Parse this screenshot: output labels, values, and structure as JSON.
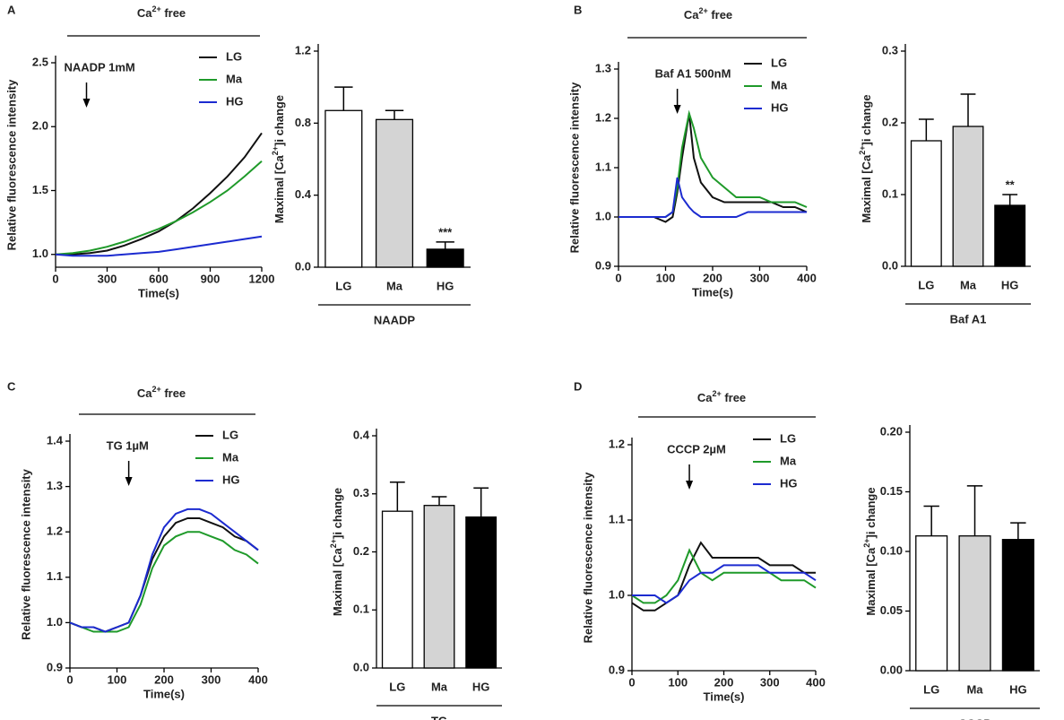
{
  "chart_data": [
    {
      "type": "line",
      "panel": "A",
      "condition": [
        "Ca",
        "2+",
        " free"
      ],
      "annotation": "NAADP 1mM",
      "annotation_x": 180,
      "xlabel": "Time(s)",
      "ylabel": "Relative fluorescence intensity",
      "xlim": [
        0,
        1200
      ],
      "xticks": [
        0,
        300,
        600,
        900,
        1200
      ],
      "ylim": [
        0.9,
        2.5
      ],
      "yticks": [
        {
          "value": 1,
          "label": "1.0"
        },
        1.5,
        {
          "value": 2,
          "label": "2.0"
        },
        2.5
      ],
      "x": [
        0,
        100,
        200,
        300,
        400,
        500,
        600,
        700,
        800,
        900,
        1000,
        1100,
        1200
      ],
      "series": [
        {
          "name": "LG",
          "color": "#111111",
          "values": [
            1.0,
            1.0,
            1.01,
            1.03,
            1.07,
            1.12,
            1.18,
            1.26,
            1.36,
            1.48,
            1.61,
            1.76,
            1.95
          ]
        },
        {
          "name": "Ma",
          "color": "#1f9a2a",
          "values": [
            1.0,
            1.01,
            1.03,
            1.06,
            1.1,
            1.15,
            1.2,
            1.26,
            1.33,
            1.41,
            1.5,
            1.61,
            1.73
          ]
        },
        {
          "name": "HG",
          "color": "#1c2bd0",
          "values": [
            1.0,
            0.99,
            0.99,
            0.99,
            1.0,
            1.01,
            1.02,
            1.04,
            1.06,
            1.08,
            1.1,
            1.12,
            1.14
          ]
        }
      ]
    },
    {
      "type": "bar",
      "ylabel": [
        "Maximal [Ca",
        "2+",
        "]i change"
      ],
      "group": "NAADP",
      "categories": [
        "LG",
        "Ma",
        "HG"
      ],
      "values": [
        0.87,
        0.82,
        0.1
      ],
      "errors": [
        0.13,
        0.05,
        0.04
      ],
      "colors": [
        "#ffffff",
        "#d4d4d4",
        "#000000"
      ],
      "significance": [
        null,
        null,
        "***"
      ],
      "ylim": [
        0,
        1.2
      ],
      "yticks": [
        {
          "value": 0,
          "label": "0.0"
        },
        0.4,
        0.8,
        1.2
      ]
    },
    {
      "type": "line",
      "panel": "B",
      "condition": [
        "Ca",
        "2+",
        " free"
      ],
      "annotation": "Baf A1 500nM",
      "annotation_x": 125,
      "xlabel": "Time(s)",
      "ylabel": "Relative fluorescence intensity",
      "xlim": [
        0,
        400
      ],
      "xticks": [
        0,
        100,
        200,
        300,
        400
      ],
      "ylim": [
        0.9,
        1.3
      ],
      "yticks": [
        0.9,
        {
          "value": 1,
          "label": "1.0"
        },
        1.1,
        1.2,
        1.3
      ],
      "x": [
        0,
        25,
        50,
        75,
        100,
        115,
        125,
        135,
        150,
        160,
        175,
        200,
        225,
        250,
        275,
        300,
        325,
        350,
        375,
        400
      ],
      "series": [
        {
          "name": "LG",
          "color": "#111111",
          "values": [
            1.0,
            1.0,
            1.0,
            1.0,
            0.99,
            1.0,
            1.05,
            1.12,
            1.21,
            1.12,
            1.07,
            1.04,
            1.03,
            1.03,
            1.03,
            1.03,
            1.03,
            1.02,
            1.02,
            1.01
          ]
        },
        {
          "name": "Ma",
          "color": "#1f9a2a",
          "values": [
            1.0,
            1.0,
            1.0,
            1.0,
            1.0,
            1.01,
            1.06,
            1.14,
            1.21,
            1.18,
            1.12,
            1.08,
            1.06,
            1.04,
            1.04,
            1.04,
            1.03,
            1.03,
            1.03,
            1.02
          ]
        },
        {
          "name": "HG",
          "color": "#1c2bd0",
          "values": [
            1.0,
            1.0,
            1.0,
            1.0,
            1.0,
            1.01,
            1.08,
            1.04,
            1.02,
            1.01,
            1.0,
            1.0,
            1.0,
            1.0,
            1.01,
            1.01,
            1.01,
            1.01,
            1.01,
            1.01
          ]
        }
      ]
    },
    {
      "type": "bar",
      "ylabel": [
        "Maximal [Ca",
        "2+",
        "]i change"
      ],
      "group": "Baf  A1",
      "categories": [
        "LG",
        "Ma",
        "HG"
      ],
      "values": [
        0.175,
        0.195,
        0.085
      ],
      "errors": [
        0.03,
        0.045,
        0.015
      ],
      "colors": [
        "#ffffff",
        "#d4d4d4",
        "#000000"
      ],
      "significance": [
        null,
        null,
        "**"
      ],
      "ylim": [
        0,
        0.3
      ],
      "yticks": [
        {
          "value": 0,
          "label": "0.0"
        },
        0.1,
        0.2,
        0.3
      ]
    },
    {
      "type": "line",
      "panel": "C",
      "condition": [
        "Ca",
        "2+",
        " free"
      ],
      "annotation": "TG 1µM",
      "annotation_x": 125,
      "xlabel": "Time(s)",
      "ylabel": "Relative fluorescence intensity",
      "xlim": [
        0,
        400
      ],
      "xticks": [
        0,
        100,
        200,
        300,
        400
      ],
      "ylim": [
        0.9,
        1.4
      ],
      "yticks": [
        0.9,
        {
          "value": 1,
          "label": "1.0"
        },
        1.1,
        1.2,
        1.3,
        1.4
      ],
      "x": [
        0,
        25,
        50,
        75,
        100,
        125,
        150,
        175,
        200,
        225,
        250,
        275,
        300,
        325,
        350,
        375,
        400
      ],
      "series": [
        {
          "name": "LG",
          "color": "#111111",
          "values": [
            1.0,
            0.99,
            0.99,
            0.98,
            0.99,
            1.0,
            1.06,
            1.14,
            1.19,
            1.22,
            1.23,
            1.23,
            1.22,
            1.21,
            1.19,
            1.18,
            1.16
          ]
        },
        {
          "name": "Ma",
          "color": "#1f9a2a",
          "values": [
            1.0,
            0.99,
            0.98,
            0.98,
            0.98,
            0.99,
            1.04,
            1.12,
            1.17,
            1.19,
            1.2,
            1.2,
            1.19,
            1.18,
            1.16,
            1.15,
            1.13
          ]
        },
        {
          "name": "HG",
          "color": "#1c2bd0",
          "values": [
            1.0,
            0.99,
            0.99,
            0.98,
            0.99,
            1.0,
            1.06,
            1.15,
            1.21,
            1.24,
            1.25,
            1.25,
            1.24,
            1.22,
            1.2,
            1.18,
            1.16
          ]
        }
      ]
    },
    {
      "type": "bar",
      "ylabel": [
        "Maximal [Ca",
        "2+",
        "]i change"
      ],
      "group": "TG",
      "categories": [
        "LG",
        "Ma",
        "HG"
      ],
      "values": [
        0.27,
        0.28,
        0.26
      ],
      "errors": [
        0.05,
        0.015,
        0.05
      ],
      "colors": [
        "#ffffff",
        "#d4d4d4",
        "#000000"
      ],
      "significance": [
        null,
        null,
        null
      ],
      "ylim": [
        0,
        0.4
      ],
      "yticks": [
        {
          "value": 0,
          "label": "0.0"
        },
        0.1,
        0.2,
        0.3,
        0.4
      ]
    },
    {
      "type": "line",
      "panel": "D",
      "condition": [
        "Ca",
        "2+",
        " free"
      ],
      "annotation": "CCCP 2µM",
      "annotation_x": 125,
      "xlabel": "Time(s)",
      "ylabel": "Relative fluorescence intensity",
      "xlim": [
        0,
        400
      ],
      "xticks": [
        0,
        100,
        200,
        300,
        400
      ],
      "ylim": [
        0.9,
        1.2
      ],
      "yticks": [
        0.9,
        {
          "value": 1,
          "label": "1.0"
        },
        1.1,
        1.2
      ],
      "x": [
        0,
        25,
        50,
        75,
        100,
        125,
        150,
        175,
        200,
        225,
        250,
        275,
        300,
        325,
        350,
        375,
        400
      ],
      "series": [
        {
          "name": "LG",
          "color": "#111111",
          "values": [
            0.99,
            0.98,
            0.98,
            0.99,
            1.0,
            1.04,
            1.07,
            1.05,
            1.05,
            1.05,
            1.05,
            1.05,
            1.04,
            1.04,
            1.04,
            1.03,
            1.03
          ]
        },
        {
          "name": "Ma",
          "color": "#1f9a2a",
          "values": [
            1.0,
            0.99,
            0.99,
            1.0,
            1.02,
            1.06,
            1.03,
            1.02,
            1.03,
            1.03,
            1.03,
            1.03,
            1.03,
            1.02,
            1.02,
            1.02,
            1.01
          ]
        },
        {
          "name": "HG",
          "color": "#1c2bd0",
          "values": [
            1.0,
            1.0,
            1.0,
            0.99,
            1.0,
            1.02,
            1.03,
            1.03,
            1.04,
            1.04,
            1.04,
            1.04,
            1.03,
            1.03,
            1.03,
            1.03,
            1.02
          ]
        }
      ]
    },
    {
      "type": "bar",
      "ylabel": [
        "Maximal [Ca",
        "2+",
        "]i change"
      ],
      "group": "CCCP",
      "categories": [
        "LG",
        "Ma",
        "HG"
      ],
      "values": [
        0.113,
        0.113,
        0.11
      ],
      "errors": [
        0.025,
        0.042,
        0.014
      ],
      "colors": [
        "#ffffff",
        "#d4d4d4",
        "#000000"
      ],
      "significance": [
        null,
        null,
        null
      ],
      "ylim": [
        0,
        0.2
      ],
      "yticks": [
        {
          "value": 0,
          "label": "0.00"
        },
        0.05,
        {
          "value": 0.1,
          "label": "0.10"
        },
        0.15,
        {
          "value": 0.2,
          "label": "0.20"
        }
      ]
    }
  ]
}
